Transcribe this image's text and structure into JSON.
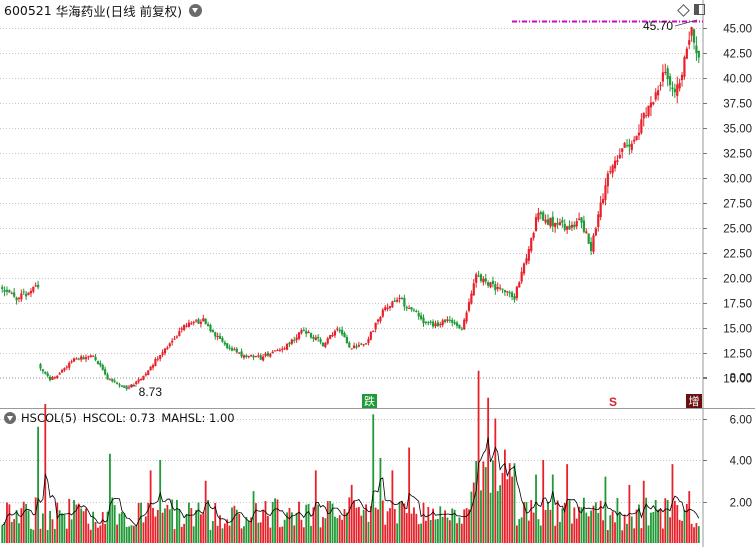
{
  "title": {
    "stock_code": "600521",
    "stock_name": "华海药业",
    "period": "(日线 前复权)"
  },
  "volume_indicator": {
    "name": "HSCOL(5)",
    "hscol": "HSCOL: 0.73",
    "mahsl": "MAHSL: 1.00"
  },
  "markers": {
    "high_label": "45.70",
    "low_label": "8.73",
    "tag_die": "跌",
    "tag_s": "S",
    "tag_zeng": "增"
  },
  "colors": {
    "up": "#e8202a",
    "down": "#1f9a37",
    "ma_line": "#000000",
    "high_line": "#d400d4",
    "grid": "#c8c8c8",
    "axis_text": "#222222"
  },
  "chart_data": [
    {
      "type": "candlestick",
      "title": "600521 华海药业(日线 前复权)",
      "y_ticks": [
        10.0,
        12.5,
        15.0,
        17.5,
        20.0,
        22.5,
        25.0,
        27.5,
        30.0,
        32.5,
        35.0,
        37.5,
        40.0,
        42.5,
        45.0
      ],
      "ylim": [
        8.2,
        46.5
      ],
      "grid": true,
      "max_marker": 45.7,
      "min_marker": 8.73,
      "price_path_anchors": [
        [
          0,
          18.9
        ],
        [
          6,
          18.0
        ],
        [
          12,
          18.6
        ],
        [
          15,
          19.3
        ],
        [
          16,
          11.0
        ],
        [
          20,
          9.8
        ],
        [
          30,
          11.8
        ],
        [
          38,
          12.3
        ],
        [
          44,
          10.0
        ],
        [
          52,
          8.9
        ],
        [
          60,
          10.4
        ],
        [
          68,
          13.0
        ],
        [
          76,
          15.2
        ],
        [
          84,
          15.8
        ],
        [
          92,
          13.4
        ],
        [
          100,
          12.3
        ],
        [
          108,
          12.0
        ],
        [
          118,
          13.2
        ],
        [
          126,
          14.8
        ],
        [
          134,
          13.4
        ],
        [
          140,
          15.0
        ],
        [
          146,
          12.9
        ],
        [
          152,
          13.6
        ],
        [
          160,
          17.0
        ],
        [
          166,
          17.8
        ],
        [
          172,
          16.6
        ],
        [
          178,
          15.3
        ],
        [
          186,
          15.6
        ],
        [
          192,
          15.1
        ],
        [
          198,
          20.2
        ],
        [
          206,
          19.0
        ],
        [
          214,
          18.1
        ],
        [
          218,
          21.5
        ],
        [
          224,
          26.5
        ],
        [
          230,
          25.4
        ],
        [
          236,
          25.0
        ],
        [
          242,
          25.8
        ],
        [
          246,
          22.8
        ],
        [
          252,
          29.5
        ],
        [
          258,
          32.5
        ],
        [
          264,
          34.0
        ],
        [
          270,
          37.0
        ],
        [
          276,
          40.5
        ],
        [
          280,
          38.5
        ],
        [
          284,
          40.5
        ],
        [
          288,
          45.0
        ],
        [
          291,
          42.0
        ]
      ]
    },
    {
      "type": "bar",
      "title": "HSCOL(5)",
      "y_ticks": [
        2.0,
        4.0,
        6.0,
        8.0
      ],
      "ylim": [
        0,
        9.2
      ],
      "grid": true,
      "series": [
        {
          "name": "HSCOL",
          "last": 0.73
        },
        {
          "name": "MAHSL",
          "last": 1.0
        }
      ],
      "spikes": [
        [
          15,
          5.6
        ],
        [
          18,
          6.7
        ],
        [
          45,
          4.3
        ],
        [
          62,
          3.5
        ],
        [
          66,
          4.0
        ],
        [
          85,
          3.0
        ],
        [
          105,
          2.5
        ],
        [
          131,
          3.5
        ],
        [
          146,
          2.8
        ],
        [
          155,
          6.2
        ],
        [
          158,
          4.1
        ],
        [
          163,
          3.5
        ],
        [
          170,
          4.6
        ],
        [
          199,
          8.3
        ],
        [
          203,
          7.0
        ],
        [
          206,
          6.0
        ],
        [
          210,
          4.5
        ],
        [
          213,
          3.2
        ],
        [
          223,
          3.3
        ],
        [
          226,
          4.0
        ],
        [
          230,
          3.3
        ],
        [
          236,
          3.8
        ],
        [
          252,
          3.2
        ],
        [
          262,
          2.8
        ],
        [
          268,
          3.0
        ],
        [
          280,
          3.8
        ],
        [
          287,
          2.5
        ]
      ]
    }
  ]
}
